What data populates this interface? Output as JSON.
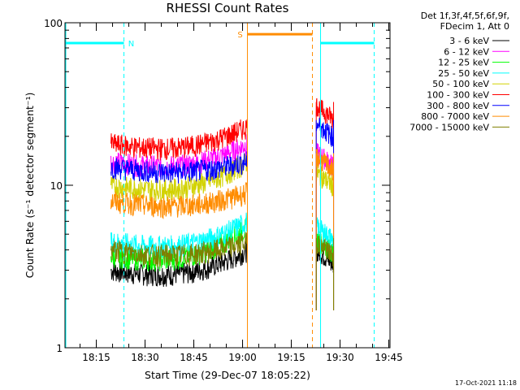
{
  "chart_data": {
    "type": "line",
    "title": "RHESSI Count Rates",
    "xlabel": "Start Time (29-Dec-07 18:05:22)",
    "ylabel": "Count Rate (s⁻¹ detector segment⁻¹)",
    "yscale": "log",
    "ylim": [
      1,
      100
    ],
    "xlim_minutes_after_start": [
      0,
      100
    ],
    "x_ticks": [
      "18:15",
      "18:30",
      "18:45",
      "19:00",
      "19:15",
      "19:30",
      "19:45"
    ],
    "y_ticks": [
      "1",
      "10",
      "100"
    ],
    "legend_title": [
      "Det 1f,3f,4f,5f,6f,9f,",
      "FDecim 1, Att 0"
    ],
    "legend_position": "right",
    "footer": "17-Oct-2021 11:18",
    "segments": [
      {
        "start": "18:19:30",
        "end": "19:01:30"
      },
      {
        "start": "19:22:40",
        "end": "19:28:00"
      }
    ],
    "series": [
      {
        "name": "3 - 6 keV",
        "color": "#000000",
        "start": 3.0,
        "end": 4.0,
        "post": 4.0
      },
      {
        "name": "6 - 12 keV",
        "color": "#ff00ff",
        "start": 14.0,
        "end": 18.0,
        "post": 16.0
      },
      {
        "name": "12 - 25 keV",
        "color": "#00ff00",
        "start": 3.7,
        "end": 5.5,
        "post": 4.7
      },
      {
        "name": "25 - 50 keV",
        "color": "#00ffff",
        "start": 4.5,
        "end": 6.0,
        "post": 5.6
      },
      {
        "name": "50 - 100 keV",
        "color": "#d2d200",
        "start": 10.0,
        "end": 14.0,
        "post": 12.0
      },
      {
        "name": "100 - 300 keV",
        "color": "#ff0000",
        "start": 18.0,
        "end": 23.0,
        "post": 31.0
      },
      {
        "name": "300 - 800 keV",
        "color": "#0000ff",
        "start": 13.0,
        "end": 14.0,
        "post": 24.0
      },
      {
        "name": "800 - 7000 keV",
        "color": "#ff8c00",
        "start": 8.0,
        "end": 9.0,
        "post": 15.0
      },
      {
        "name": "7000 - 15000 keV",
        "color": "#808000",
        "start": 4.0,
        "end": 4.5,
        "post": 4.5
      }
    ],
    "annotations": [
      {
        "label": "N",
        "color": "#00ffff",
        "type": "night",
        "intervals": [
          {
            "from": "18:05:22",
            "to": "18:23:30",
            "level": 75
          },
          {
            "from": "19:24:00",
            "to": "19:40:30",
            "level": 75
          }
        ],
        "dashed_lines": [
          "18:23:30",
          "19:40:30"
        ],
        "solid_lines": [
          "19:24:00"
        ]
      },
      {
        "label": "S",
        "color": "#ff8c00",
        "type": "saa",
        "intervals": [
          {
            "from": "19:01:30",
            "to": "19:21:30",
            "level": 85
          }
        ],
        "dashed_lines": [
          "19:21:30"
        ],
        "solid_lines": [
          "19:01:30"
        ]
      }
    ]
  }
}
